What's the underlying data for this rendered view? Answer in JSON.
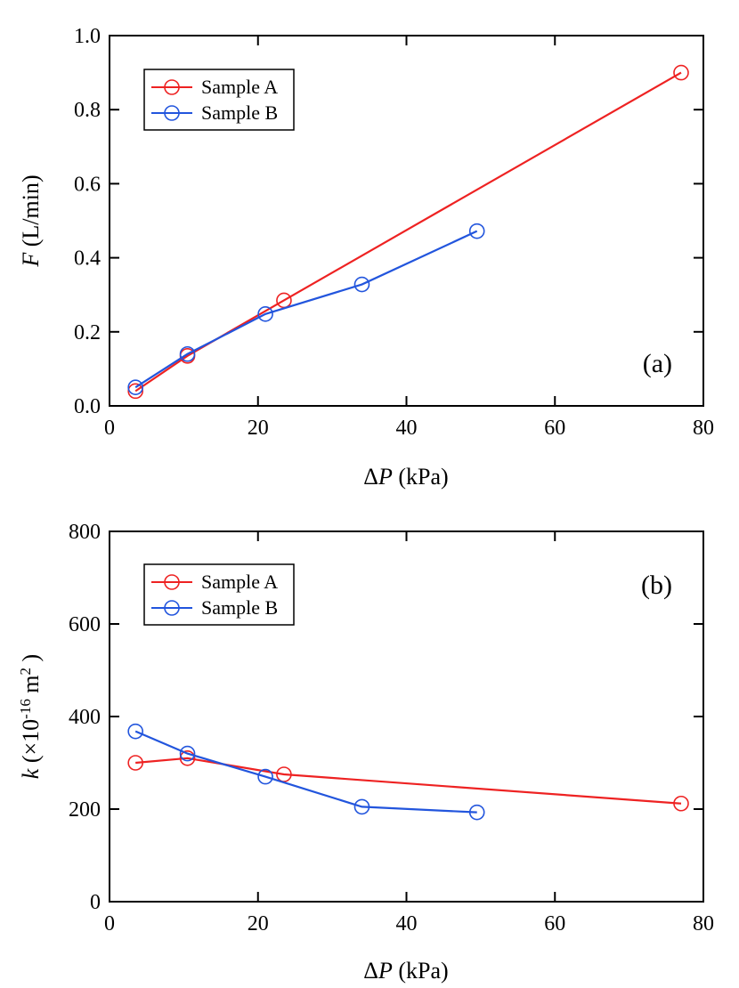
{
  "chart_data": [
    {
      "type": "line",
      "panel_label": "(a)",
      "xlabel": {
        "symbol": "Δ",
        "var": "P",
        "unit": " (kPa)"
      },
      "ylabel": {
        "var": "F",
        "unit": " (L/min)"
      },
      "xlim": [
        0,
        80
      ],
      "ylim": [
        0,
        1.0
      ],
      "xticks": [
        0,
        20,
        40,
        60,
        80
      ],
      "xtick_labels": [
        "0",
        "20",
        "40",
        "60",
        "80"
      ],
      "yticks": [
        0,
        0.2,
        0.4,
        0.6,
        0.8,
        1.0
      ],
      "ytick_labels": [
        "0.0",
        "0.2",
        "0.4",
        "0.6",
        "0.8",
        "1.0"
      ],
      "legend_position": "top-left",
      "grid": false,
      "series": [
        {
          "name": "Sample A",
          "color": "#ee2222",
          "marker": "open-circle",
          "x": [
            3.5,
            10.5,
            23.5,
            77.0
          ],
          "y": [
            0.04,
            0.135,
            0.285,
            0.9
          ]
        },
        {
          "name": "Sample B",
          "color": "#2255dd",
          "marker": "open-circle",
          "x": [
            3.5,
            10.5,
            21.0,
            34.0,
            49.5
          ],
          "y": [
            0.05,
            0.14,
            0.248,
            0.328,
            0.472
          ]
        }
      ]
    },
    {
      "type": "line",
      "panel_label": "(b)",
      "xlabel": {
        "symbol": "Δ",
        "var": "P",
        "unit": " (kPa)"
      },
      "ylabel": {
        "var": "k",
        "pre": " (×10",
        "sup1": "-16",
        "mid": " m",
        "sup2": "2",
        "post": " )"
      },
      "xlim": [
        0,
        80
      ],
      "ylim": [
        0,
        800
      ],
      "xticks": [
        0,
        20,
        40,
        60,
        80
      ],
      "xtick_labels": [
        "0",
        "20",
        "40",
        "60",
        "80"
      ],
      "yticks": [
        0,
        200,
        400,
        600,
        800
      ],
      "ytick_labels": [
        "0",
        "200",
        "400",
        "600",
        "800"
      ],
      "legend_position": "top-left",
      "grid": false,
      "series": [
        {
          "name": "Sample A",
          "color": "#ee2222",
          "marker": "open-circle",
          "x": [
            3.5,
            10.5,
            23.5,
            77.0
          ],
          "y": [
            300,
            310,
            275,
            212
          ]
        },
        {
          "name": "Sample B",
          "color": "#2255dd",
          "marker": "open-circle",
          "x": [
            3.5,
            10.5,
            21.0,
            34.0,
            49.5
          ],
          "y": [
            368,
            320,
            270,
            205,
            193
          ]
        }
      ]
    }
  ]
}
